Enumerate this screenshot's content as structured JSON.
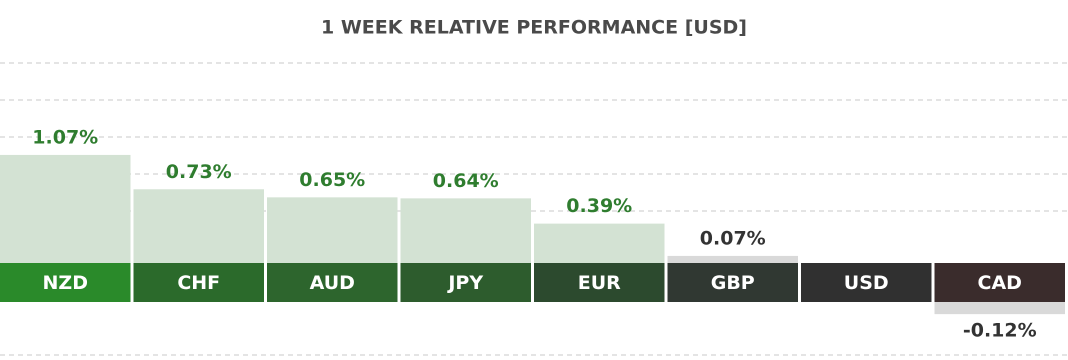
{
  "chart_data": {
    "type": "bar",
    "title": "1 WEEK RELATIVE PERFORMANCE  [USD]",
    "categories": [
      "NZD",
      "CHF",
      "AUD",
      "JPY",
      "EUR",
      "GBP",
      "USD",
      "CAD"
    ],
    "values": [
      1.07,
      0.73,
      0.65,
      0.64,
      0.39,
      0.07,
      0,
      -0.12
    ],
    "value_labels": [
      "1.07%",
      "0.73%",
      "0.65%",
      "0.64%",
      "0.39%",
      "0.07%",
      null,
      "-0.12%"
    ],
    "colors": [
      "#2a8a2a",
      "#2b6a2b",
      "#2d652d",
      "#2d5c2d",
      "#2c4a2e",
      "#303832",
      "#303030",
      "#3a2c2c"
    ]
  }
}
